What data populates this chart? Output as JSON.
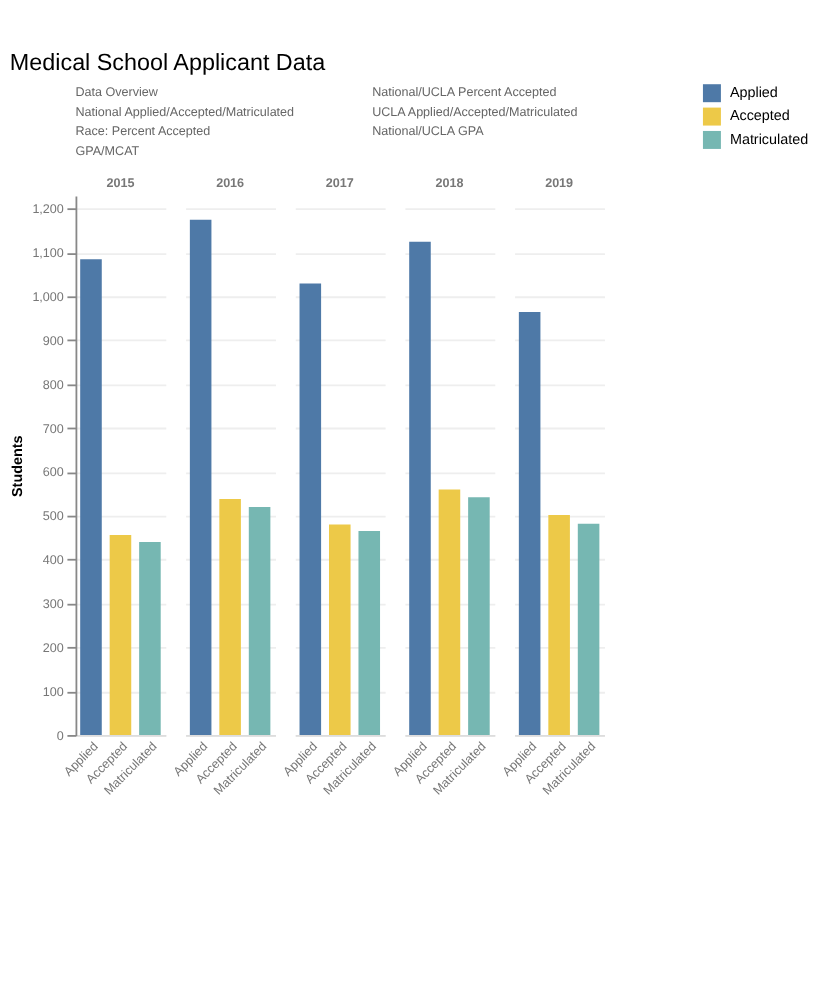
{
  "chart_data": {
    "type": "bar",
    "title": "Medical School Applicant Data",
    "annotations": [
      "Data Overview",
      "National/UCLA Percent Accepted",
      "National Applied/Accepted/Matriculated",
      "UCLA Applied/Accepted/Matriculated",
      "Race: Percent Accepted",
      "National/UCLA GPA",
      "GPA/MCAT"
    ],
    "categories": [
      "2015",
      "2016",
      "2017",
      "2018",
      "2019"
    ],
    "ylabel": "Students",
    "ylim": [
      0,
      1230
    ],
    "yticks": [
      0,
      100,
      200,
      300,
      400,
      500,
      600,
      700,
      800,
      900,
      {
        "value": 1000,
        "label": "1,000"
      },
      {
        "value": 1100,
        "label": "1,100"
      },
      {
        "value": 1200,
        "label": "1,200"
      }
    ],
    "grid": "y",
    "legend": "top right",
    "series": [
      {
        "name": "Applied",
        "color": "#4e79a7",
        "values": [
          1085,
          1175,
          1030,
          1125,
          965
        ]
      },
      {
        "name": "Accepted",
        "color": "#edc948",
        "values": [
          456,
          538,
          480,
          560,
          502
        ]
      },
      {
        "name": "Matriculated",
        "color": "#76b7b2",
        "values": [
          440,
          520,
          465,
          542,
          482
        ]
      }
    ]
  }
}
